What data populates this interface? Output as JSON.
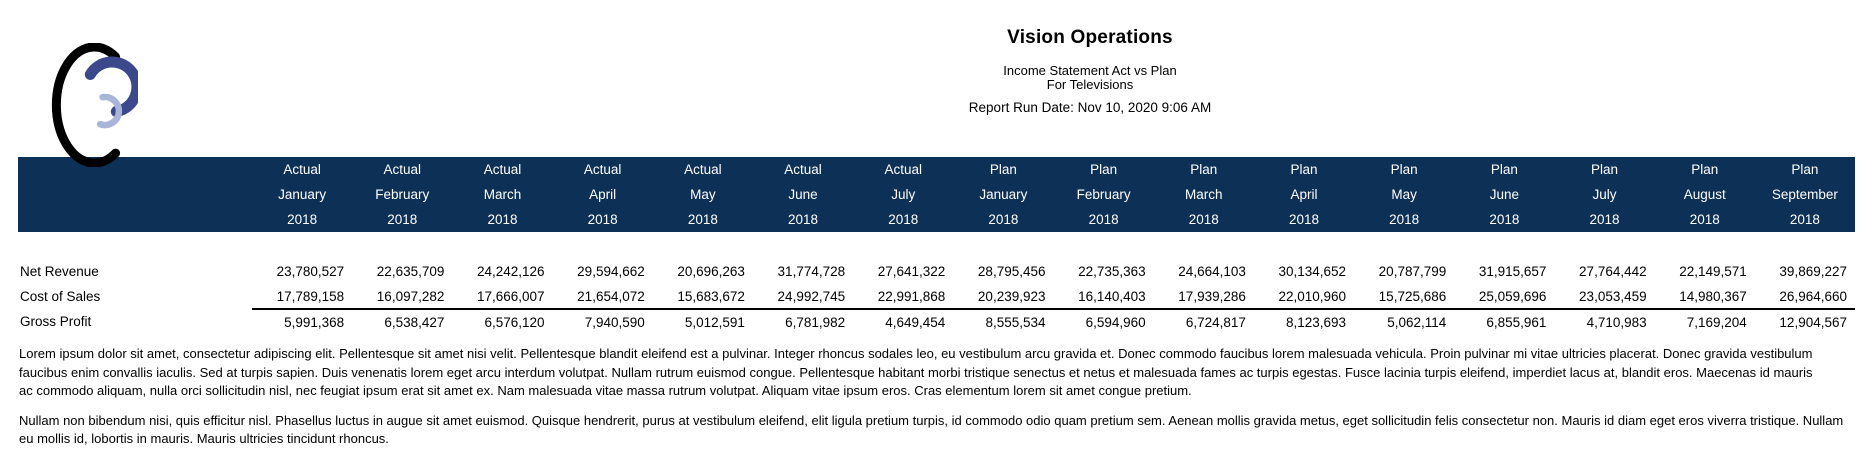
{
  "page": {
    "title": "Vision Operations",
    "subtitle": [
      "Income Statement Act vs Plan",
      "For Televisions"
    ],
    "run_date": "Report Run Date: Nov 10, 2020 9:06 AM"
  },
  "logo": {
    "colors": {
      "outer": "#000000",
      "middle": "#3c488c",
      "inner": "#a8b4d8"
    }
  },
  "table": {
    "header_bg": "#0d3056",
    "header_text_color": "#ffffff",
    "columns": [
      {
        "scenario": "Actual",
        "month": "January",
        "year": "2018"
      },
      {
        "scenario": "Actual",
        "month": "February",
        "year": "2018"
      },
      {
        "scenario": "Actual",
        "month": "March",
        "year": "2018"
      },
      {
        "scenario": "Actual",
        "month": "April",
        "year": "2018"
      },
      {
        "scenario": "Actual",
        "month": "May",
        "year": "2018"
      },
      {
        "scenario": "Actual",
        "month": "June",
        "year": "2018"
      },
      {
        "scenario": "Actual",
        "month": "July",
        "year": "2018"
      },
      {
        "scenario": "Plan",
        "month": "January",
        "year": "2018"
      },
      {
        "scenario": "Plan",
        "month": "February",
        "year": "2018"
      },
      {
        "scenario": "Plan",
        "month": "March",
        "year": "2018"
      },
      {
        "scenario": "Plan",
        "month": "April",
        "year": "2018"
      },
      {
        "scenario": "Plan",
        "month": "May",
        "year": "2018"
      },
      {
        "scenario": "Plan",
        "month": "June",
        "year": "2018"
      },
      {
        "scenario": "Plan",
        "month": "July",
        "year": "2018"
      },
      {
        "scenario": "Plan",
        "month": "August",
        "year": "2018"
      },
      {
        "scenario": "Plan",
        "month": "September",
        "year": "2018"
      }
    ],
    "rows": [
      {
        "label": "Net Revenue",
        "total": false,
        "values": [
          "23,780,527",
          "22,635,709",
          "24,242,126",
          "29,594,662",
          "20,696,263",
          "31,774,728",
          "27,641,322",
          "28,795,456",
          "22,735,363",
          "24,664,103",
          "30,134,652",
          "20,787,799",
          "31,915,657",
          "27,764,442",
          "22,149,571",
          "39,869,227"
        ]
      },
      {
        "label": "Cost of Sales",
        "total": false,
        "values": [
          "17,789,158",
          "16,097,282",
          "17,666,007",
          "21,654,072",
          "15,683,672",
          "24,992,745",
          "22,991,868",
          "20,239,923",
          "16,140,403",
          "17,939,286",
          "22,010,960",
          "15,725,686",
          "25,059,696",
          "23,053,459",
          "14,980,367",
          "26,964,660"
        ]
      },
      {
        "label": "Gross Profit",
        "total": true,
        "values": [
          "5,991,368",
          "6,538,427",
          "6,576,120",
          "7,940,590",
          "5,012,591",
          "6,781,982",
          "4,649,454",
          "8,555,534",
          "6,594,960",
          "6,724,817",
          "8,123,693",
          "5,062,114",
          "6,855,961",
          "4,710,983",
          "7,169,204",
          "12,904,567"
        ]
      }
    ]
  },
  "paragraphs": [
    [
      "Lorem ipsum dolor sit amet, consectetur adipiscing elit. Pellentesque sit amet nisi velit. Pellentesque blandit eleifend est a pulvinar. Integer rhoncus sodales leo, eu vestibulum arcu gravida et. Donec commodo faucibus lorem malesuada vehicula. Proin pulvinar mi vitae ultricies placerat. Donec gravida vestibulum",
      "faucibus enim convallis iaculis. Sed at turpis sapien. Duis venenatis lorem eget arcu interdum volutpat. Nullam rutrum euismod congue. Pellentesque habitant morbi tristique senectus et netus et malesuada fames ac turpis egestas. Fusce lacinia turpis eleifend, imperdiet lacus at, blandit eros. Maecenas id mauris",
      "ac commodo aliquam, nulla orci sollicitudin nisl, nec feugiat ipsum erat sit amet ex. Nam malesuada vitae massa rutrum volutpat. Aliquam vitae ipsum eros. Cras elementum lorem sit amet congue pretium."
    ],
    [
      "Nullam non bibendum nisi, quis efficitur nisl. Phasellus luctus in augue sit amet euismod. Quisque hendrerit, purus at vestibulum eleifend, elit ligula pretium turpis, id commodo odio quam pretium sem. Aenean mollis gravida metus, eget sollicitudin felis consectetur non. Mauris id diam eget eros viverra tristique. Nullam",
      "eu mollis id, lobortis in mauris. Mauris ultricies tincidunt rhoncus."
    ]
  ]
}
